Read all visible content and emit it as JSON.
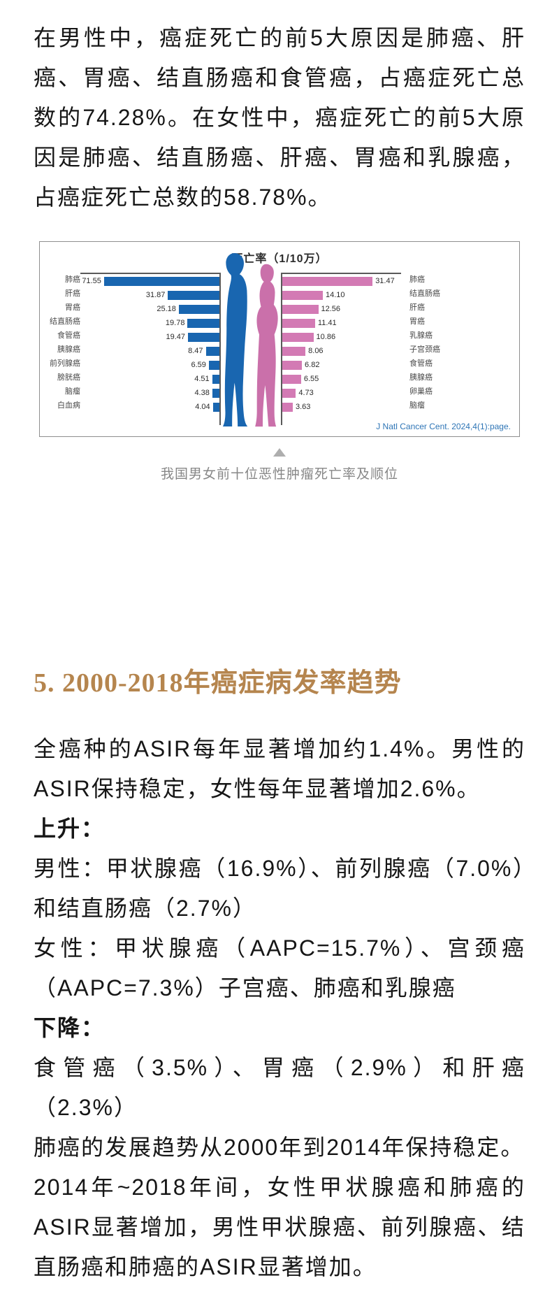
{
  "article": {
    "intro": "在男性中，癌症死亡的前5大原因是肺癌、肝癌、胃癌、结直肠癌和食管癌，占癌症死亡总数的74.28%。在女性中，癌症死亡的前5大原因是肺癌、结直肠癌、肝癌、胃癌和乳腺癌，占癌症死亡总数的58.78%。",
    "section_heading": "5. 2000-2018年癌症病发率趋势",
    "paragraphs": [
      {
        "text": "全癌种的ASIR每年显著增加约1.4%。男性的ASIR保持稳定，女性每年显著增加2.6%。",
        "bold": false
      },
      {
        "text": "上升：",
        "bold": true
      },
      {
        "text": "男性：甲状腺癌（16.9%）、前列腺癌（7.0%）和结直肠癌（2.7%）",
        "bold": false
      },
      {
        "text": "女性：甲状腺癌（AAPC=15.7%）、宫颈癌（AAPC=7.3%）子宫癌、肺癌和乳腺癌",
        "bold": false
      },
      {
        "text": "下降：",
        "bold": true
      },
      {
        "text": "食管癌（3.5%）、胃癌（2.9%）和肝癌（2.3%）",
        "bold": false
      },
      {
        "text": "肺癌的发展趋势从2000年到2014年保持稳定。",
        "bold": false
      },
      {
        "text": "2014年~2018年间，女性甲状腺癌和肺癌的ASIR显著增加，男性甲状腺癌、前列腺癌、结直肠癌和肺癌的ASIR显著增加。",
        "bold": false
      }
    ]
  },
  "figure": {
    "caption": "我国男女前十位恶性肿瘤死亡率及顺位",
    "source": "J Natl Cancer Cent. 2024,4(1):page."
  },
  "chart_data": {
    "type": "bar",
    "orientation": "horizontal back-to-back pyramid",
    "title": "死亡率（1/10万）",
    "unit": "1/100000",
    "legend_position": "none",
    "source": "J Natl Cancer Cent. 2024,4(1):page.",
    "series": [
      {
        "name": "男性",
        "color": "#1966b0",
        "categories": [
          "肺癌",
          "肝癌",
          "胃癌",
          "结直肠癌",
          "食管癌",
          "胰腺癌",
          "前列腺癌",
          "膀胱癌",
          "脑瘤",
          "白血病"
        ],
        "values": [
          71.55,
          31.87,
          25.18,
          19.78,
          19.47,
          8.47,
          6.59,
          4.51,
          4.38,
          4.04
        ]
      },
      {
        "name": "女性",
        "color": "#d37ab4",
        "categories": [
          "肺癌",
          "结直肠癌",
          "肝癌",
          "胃癌",
          "乳腺癌",
          "子宫颈癌",
          "食管癌",
          "胰腺癌",
          "卵巢癌",
          "脑瘤"
        ],
        "values": [
          31.47,
          14.1,
          12.56,
          11.41,
          10.86,
          8.06,
          6.82,
          6.55,
          4.73,
          3.63
        ]
      }
    ]
  },
  "colors": {
    "male_blue": "#1966b0",
    "female_pink": "#d37ab4",
    "heading_gold": "#b5854e",
    "caption_gray": "#878787",
    "citation_blue": "#2e75b6"
  }
}
